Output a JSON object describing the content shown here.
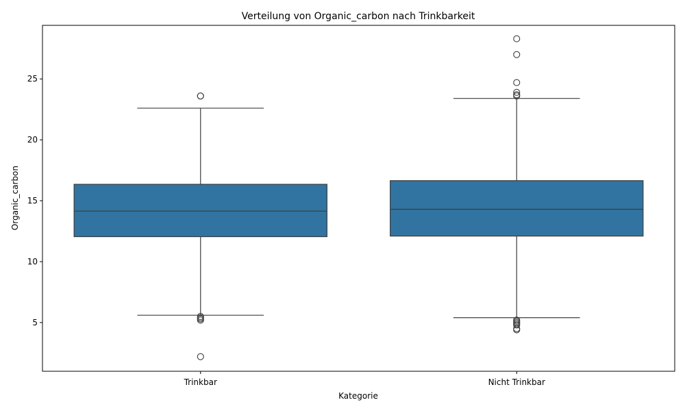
{
  "chart_data": {
    "type": "box",
    "title": "Verteilung von Organic_carbon nach Trinkbarkeit",
    "xlabel": "Kategorie",
    "ylabel": "Organic_carbon",
    "ylim": [
      1.0,
      29.4
    ],
    "yticks": [
      5,
      10,
      15,
      20,
      25
    ],
    "grid": false,
    "legend": "none",
    "box_color": "#3274a1",
    "line_color": "#3d3d3d",
    "categories": [
      "Trinkbar",
      "Nicht Trinkbar"
    ],
    "boxes": [
      {
        "category": "Trinkbar",
        "whisker_low": 5.6,
        "q1": 12.05,
        "median": 14.15,
        "q3": 16.35,
        "whisker_high": 22.6,
        "outliers": [
          23.6,
          23.6,
          5.5,
          5.4,
          5.3,
          5.2,
          2.2
        ]
      },
      {
        "category": "Nicht Trinkbar",
        "whisker_low": 5.4,
        "q1": 12.1,
        "median": 14.3,
        "q3": 16.65,
        "whisker_high": 23.4,
        "outliers": [
          28.3,
          27.0,
          24.7,
          23.9,
          23.7,
          23.6,
          5.2,
          5.1,
          5.0,
          4.9,
          4.8,
          4.5,
          4.4
        ]
      }
    ]
  }
}
